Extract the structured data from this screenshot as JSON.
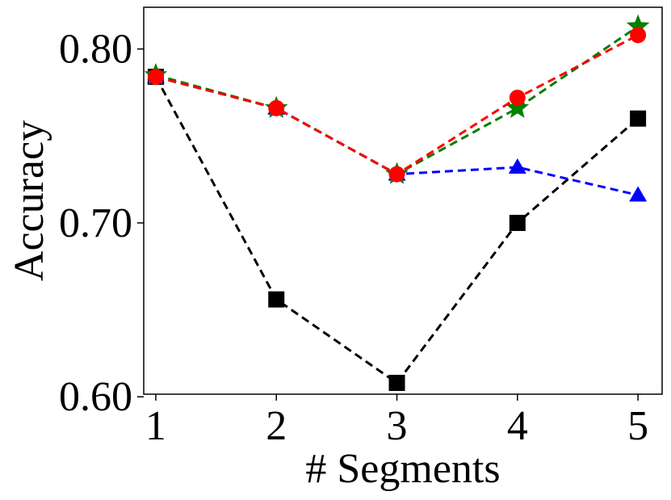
{
  "chart_data": {
    "type": "line",
    "title": "",
    "xlabel": "# Segments",
    "ylabel": "Accuracy",
    "x": [
      1,
      2,
      3,
      4,
      5
    ],
    "xticks": [
      "1",
      "2",
      "3",
      "4",
      "5"
    ],
    "yticks": [
      0.6,
      0.7,
      0.8
    ],
    "ytick_labels": [
      "0.60",
      "0.70",
      "0.80"
    ],
    "xlim": [
      0.9,
      5.2
    ],
    "ylim": [
      0.6015,
      0.824
    ],
    "grid": false,
    "legend": "none",
    "series": [
      {
        "color": "#000000",
        "marker": "square",
        "linestyle": "dashed",
        "values": [
          0.784,
          0.656,
          0.608,
          0.7,
          0.76
        ]
      },
      {
        "color": "#0000ff",
        "marker": "triangle",
        "linestyle": "dashed",
        "values": [
          0.784,
          0.766,
          0.728,
          0.732,
          0.716
        ]
      },
      {
        "color": "#008000",
        "marker": "star",
        "linestyle": "dashed",
        "values": [
          0.785,
          0.766,
          0.728,
          0.766,
          0.813
        ]
      },
      {
        "color": "#ff0000",
        "marker": "circle",
        "linestyle": "dashed",
        "values": [
          0.784,
          0.766,
          0.728,
          0.772,
          0.808
        ]
      }
    ]
  }
}
